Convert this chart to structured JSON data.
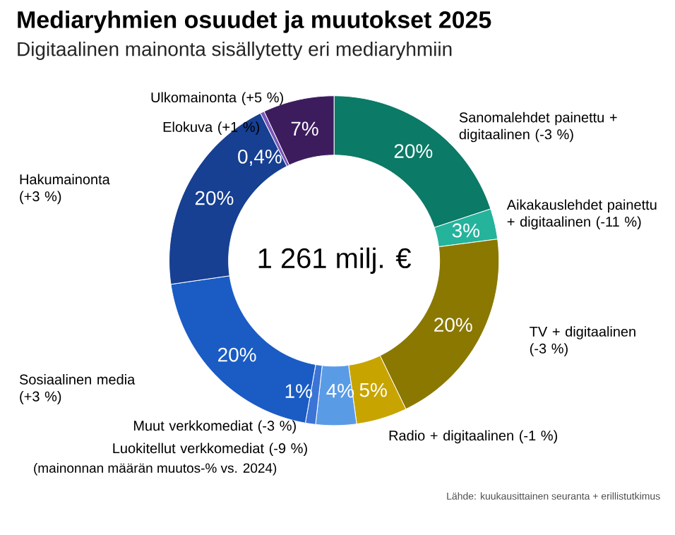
{
  "chart_data": {
    "type": "donut",
    "title": "Mediaryhmien osuudet ja muutokset 2025",
    "subtitle": "Digitaalinen mainonta sisällytetty eri mediaryhmiin",
    "categories": [
      "Sanomalehdet painettu + digitaalinen (-3 %)",
      "Aikakauslehdet painettu + digitaalinen (-11 %)",
      "TV + digitaalinen (-3 %)",
      "Radio + digitaalinen (-1 %)",
      "Luokitellut verkkomediat (-9 %)",
      "Muut verkkomediat (-3 %)",
      "Sosiaalinen media (+3 %)",
      "Hakumainonta (+3 %)",
      "Elokuva (+1 %)",
      "Ulkomainonta (+5 %)"
    ],
    "values": [
      20,
      3,
      20,
      5,
      4,
      1,
      20,
      20,
      0.4,
      7
    ],
    "value_labels": [
      "20%",
      "3%",
      "20%",
      "5%",
      "4%",
      "1%",
      "20%",
      "20%",
      "0,4%",
      "7%"
    ],
    "colors": [
      "#0b7a66",
      "#25b39c",
      "#8a7800",
      "#c8a400",
      "#5a9be6",
      "#3c74d6",
      "#1a5cc4",
      "#173f92",
      "#7b56b8",
      "#3d1c5e"
    ],
    "annotations": [
      "1 261 milj. €",
      "(mainonnan määrän muutos-% vs. 2024)",
      "Lähde: kuukausittainen seuranta + erillistutkimus"
    ]
  }
}
